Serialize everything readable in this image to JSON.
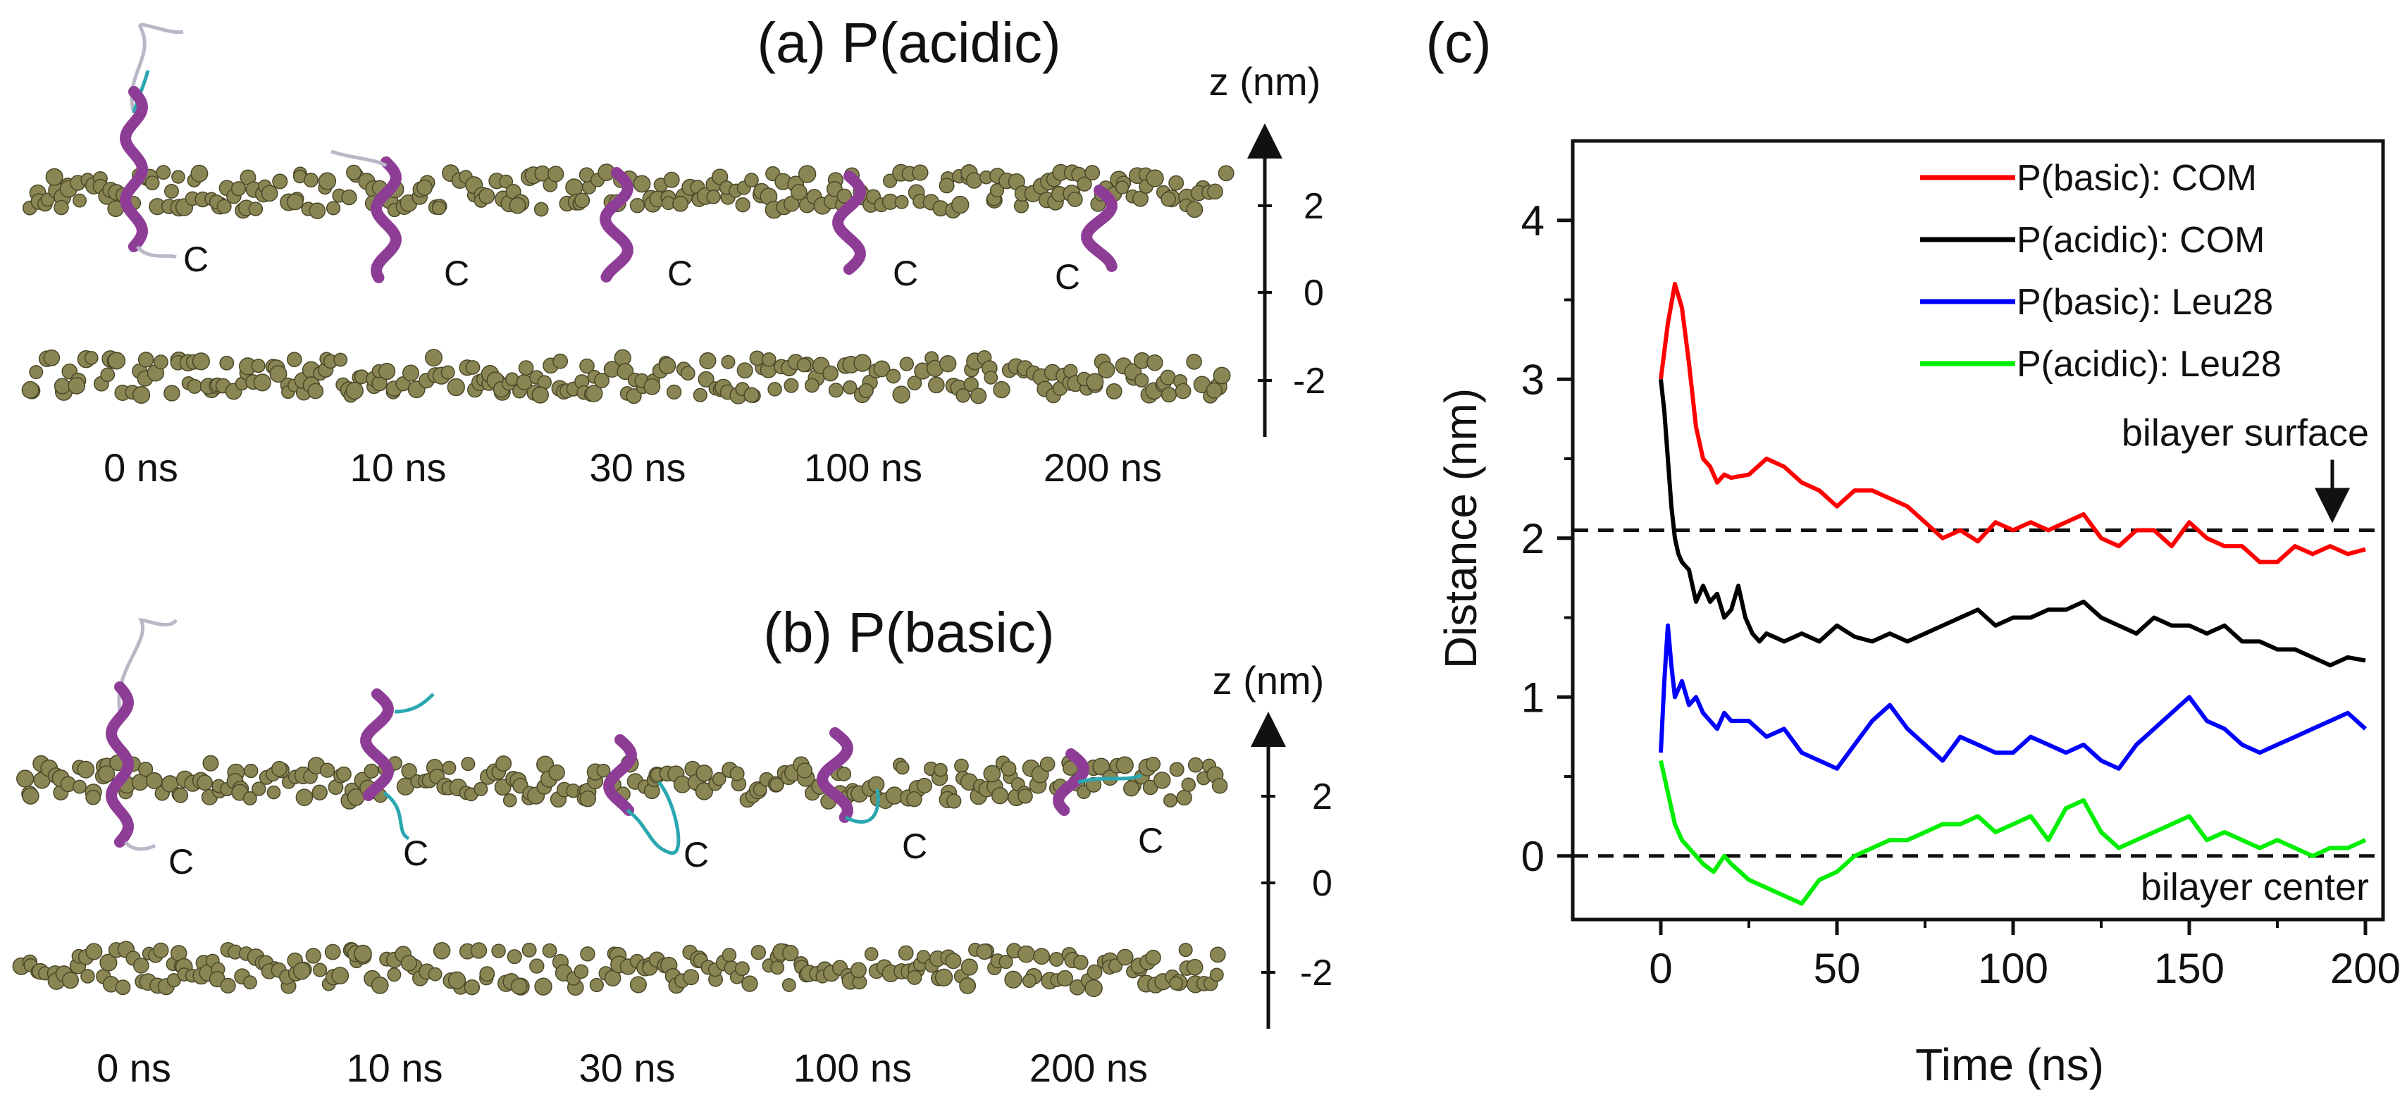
{
  "panel_a": {
    "title": "(a) P(acidic)",
    "axis_label": "z (nm)",
    "z_ticks": [
      "2",
      "0",
      "-2"
    ],
    "snapshot_times": [
      "0 ns",
      "10 ns",
      "30 ns",
      "100 ns",
      "200 ns"
    ],
    "terminus_label": "C"
  },
  "panel_b": {
    "title": "(b) P(basic)",
    "axis_label": "z (nm)",
    "z_ticks": [
      "2",
      "0",
      "-2"
    ],
    "snapshot_times": [
      "0 ns",
      "10 ns",
      "30 ns",
      "100 ns",
      "200 ns"
    ],
    "terminus_label": "C"
  },
  "chart_data": {
    "type": "line",
    "panel_label": "(c)",
    "xlabel": "Time (ns)",
    "ylabel": "Distance (nm)",
    "xlim": [
      -25,
      205
    ],
    "ylim": [
      -0.4,
      4.5
    ],
    "xticks": [
      0,
      50,
      100,
      150,
      200
    ],
    "yticks": [
      0,
      1,
      2,
      3,
      4
    ],
    "legend_position": "top-right",
    "series": [
      {
        "name": "P(basic): COM",
        "color": "#ff0000",
        "points": [
          [
            0,
            3.0
          ],
          [
            2,
            3.35
          ],
          [
            4,
            3.6
          ],
          [
            6,
            3.45
          ],
          [
            8,
            3.1
          ],
          [
            10,
            2.7
          ],
          [
            12,
            2.5
          ],
          [
            14,
            2.45
          ],
          [
            16,
            2.35
          ],
          [
            18,
            2.4
          ],
          [
            20,
            2.38
          ],
          [
            25,
            2.4
          ],
          [
            30,
            2.5
          ],
          [
            35,
            2.45
          ],
          [
            40,
            2.35
          ],
          [
            45,
            2.3
          ],
          [
            50,
            2.2
          ],
          [
            55,
            2.3
          ],
          [
            60,
            2.3
          ],
          [
            65,
            2.25
          ],
          [
            70,
            2.2
          ],
          [
            75,
            2.1
          ],
          [
            80,
            2.0
          ],
          [
            85,
            2.05
          ],
          [
            90,
            1.98
          ],
          [
            95,
            2.1
          ],
          [
            100,
            2.05
          ],
          [
            105,
            2.1
          ],
          [
            110,
            2.05
          ],
          [
            115,
            2.1
          ],
          [
            120,
            2.15
          ],
          [
            125,
            2.0
          ],
          [
            130,
            1.95
          ],
          [
            135,
            2.05
          ],
          [
            140,
            2.05
          ],
          [
            145,
            1.95
          ],
          [
            150,
            2.1
          ],
          [
            155,
            2.0
          ],
          [
            160,
            1.95
          ],
          [
            165,
            1.95
          ],
          [
            170,
            1.85
          ],
          [
            175,
            1.85
          ],
          [
            180,
            1.95
          ],
          [
            185,
            1.9
          ],
          [
            190,
            1.95
          ],
          [
            195,
            1.9
          ],
          [
            200,
            1.93
          ]
        ]
      },
      {
        "name": "P(acidic): COM",
        "color": "#000000",
        "points": [
          [
            0,
            3.0
          ],
          [
            1,
            2.8
          ],
          [
            2,
            2.5
          ],
          [
            3,
            2.2
          ],
          [
            4,
            2.0
          ],
          [
            5,
            1.9
          ],
          [
            6,
            1.85
          ],
          [
            8,
            1.8
          ],
          [
            10,
            1.6
          ],
          [
            12,
            1.7
          ],
          [
            14,
            1.6
          ],
          [
            16,
            1.65
          ],
          [
            18,
            1.5
          ],
          [
            20,
            1.55
          ],
          [
            22,
            1.7
          ],
          [
            24,
            1.5
          ],
          [
            26,
            1.4
          ],
          [
            28,
            1.35
          ],
          [
            30,
            1.4
          ],
          [
            35,
            1.35
          ],
          [
            40,
            1.4
          ],
          [
            45,
            1.35
          ],
          [
            50,
            1.45
          ],
          [
            55,
            1.38
          ],
          [
            60,
            1.35
          ],
          [
            65,
            1.4
          ],
          [
            70,
            1.35
          ],
          [
            75,
            1.4
          ],
          [
            80,
            1.45
          ],
          [
            85,
            1.5
          ],
          [
            90,
            1.55
          ],
          [
            95,
            1.45
          ],
          [
            100,
            1.5
          ],
          [
            105,
            1.5
          ],
          [
            110,
            1.55
          ],
          [
            115,
            1.55
          ],
          [
            120,
            1.6
          ],
          [
            125,
            1.5
          ],
          [
            130,
            1.45
          ],
          [
            135,
            1.4
          ],
          [
            140,
            1.5
          ],
          [
            145,
            1.45
          ],
          [
            150,
            1.45
          ],
          [
            155,
            1.4
          ],
          [
            160,
            1.45
          ],
          [
            165,
            1.35
          ],
          [
            170,
            1.35
          ],
          [
            175,
            1.3
          ],
          [
            180,
            1.3
          ],
          [
            185,
            1.25
          ],
          [
            190,
            1.2
          ],
          [
            195,
            1.25
          ],
          [
            200,
            1.23
          ]
        ]
      },
      {
        "name": "P(basic): Leu28",
        "color": "#0000ff",
        "points": [
          [
            0,
            0.65
          ],
          [
            1,
            1.1
          ],
          [
            2,
            1.45
          ],
          [
            3,
            1.2
          ],
          [
            4,
            1.0
          ],
          [
            6,
            1.1
          ],
          [
            8,
            0.95
          ],
          [
            10,
            1.0
          ],
          [
            12,
            0.9
          ],
          [
            14,
            0.85
          ],
          [
            16,
            0.8
          ],
          [
            18,
            0.9
          ],
          [
            20,
            0.85
          ],
          [
            25,
            0.85
          ],
          [
            30,
            0.75
          ],
          [
            35,
            0.8
          ],
          [
            40,
            0.65
          ],
          [
            45,
            0.6
          ],
          [
            50,
            0.55
          ],
          [
            55,
            0.7
          ],
          [
            60,
            0.85
          ],
          [
            65,
            0.95
          ],
          [
            70,
            0.8
          ],
          [
            75,
            0.7
          ],
          [
            80,
            0.6
          ],
          [
            85,
            0.75
          ],
          [
            90,
            0.7
          ],
          [
            95,
            0.65
          ],
          [
            100,
            0.65
          ],
          [
            105,
            0.75
          ],
          [
            110,
            0.7
          ],
          [
            115,
            0.65
          ],
          [
            120,
            0.7
          ],
          [
            125,
            0.6
          ],
          [
            130,
            0.55
          ],
          [
            135,
            0.7
          ],
          [
            140,
            0.8
          ],
          [
            145,
            0.9
          ],
          [
            150,
            1.0
          ],
          [
            155,
            0.85
          ],
          [
            160,
            0.8
          ],
          [
            165,
            0.7
          ],
          [
            170,
            0.65
          ],
          [
            175,
            0.7
          ],
          [
            180,
            0.75
          ],
          [
            185,
            0.8
          ],
          [
            190,
            0.85
          ],
          [
            195,
            0.9
          ],
          [
            200,
            0.8
          ]
        ]
      },
      {
        "name": "P(acidic): Leu28",
        "color": "#00ee00",
        "points": [
          [
            0,
            0.6
          ],
          [
            2,
            0.4
          ],
          [
            4,
            0.2
          ],
          [
            6,
            0.1
          ],
          [
            8,
            0.05
          ],
          [
            10,
            0.0
          ],
          [
            12,
            -0.05
          ],
          [
            15,
            -0.1
          ],
          [
            18,
            0.0
          ],
          [
            20,
            -0.05
          ],
          [
            25,
            -0.15
          ],
          [
            30,
            -0.2
          ],
          [
            35,
            -0.25
          ],
          [
            40,
            -0.3
          ],
          [
            45,
            -0.15
          ],
          [
            50,
            -0.1
          ],
          [
            55,
            0.0
          ],
          [
            60,
            0.05
          ],
          [
            65,
            0.1
          ],
          [
            70,
            0.1
          ],
          [
            75,
            0.15
          ],
          [
            80,
            0.2
          ],
          [
            85,
            0.2
          ],
          [
            90,
            0.25
          ],
          [
            95,
            0.15
          ],
          [
            100,
            0.2
          ],
          [
            105,
            0.25
          ],
          [
            110,
            0.1
          ],
          [
            115,
            0.3
          ],
          [
            120,
            0.35
          ],
          [
            125,
            0.15
          ],
          [
            130,
            0.05
          ],
          [
            135,
            0.1
          ],
          [
            140,
            0.15
          ],
          [
            145,
            0.2
          ],
          [
            150,
            0.25
          ],
          [
            155,
            0.1
          ],
          [
            160,
            0.15
          ],
          [
            165,
            0.1
          ],
          [
            170,
            0.05
          ],
          [
            175,
            0.1
          ],
          [
            180,
            0.05
          ],
          [
            185,
            0.0
          ],
          [
            190,
            0.05
          ],
          [
            195,
            0.05
          ],
          [
            200,
            0.1
          ]
        ]
      }
    ],
    "reference_lines": [
      {
        "y": 2.05,
        "label": "bilayer surface",
        "style": "dashed"
      },
      {
        "y": 0.0,
        "label": "bilayer center",
        "style": "dashed"
      }
    ]
  }
}
